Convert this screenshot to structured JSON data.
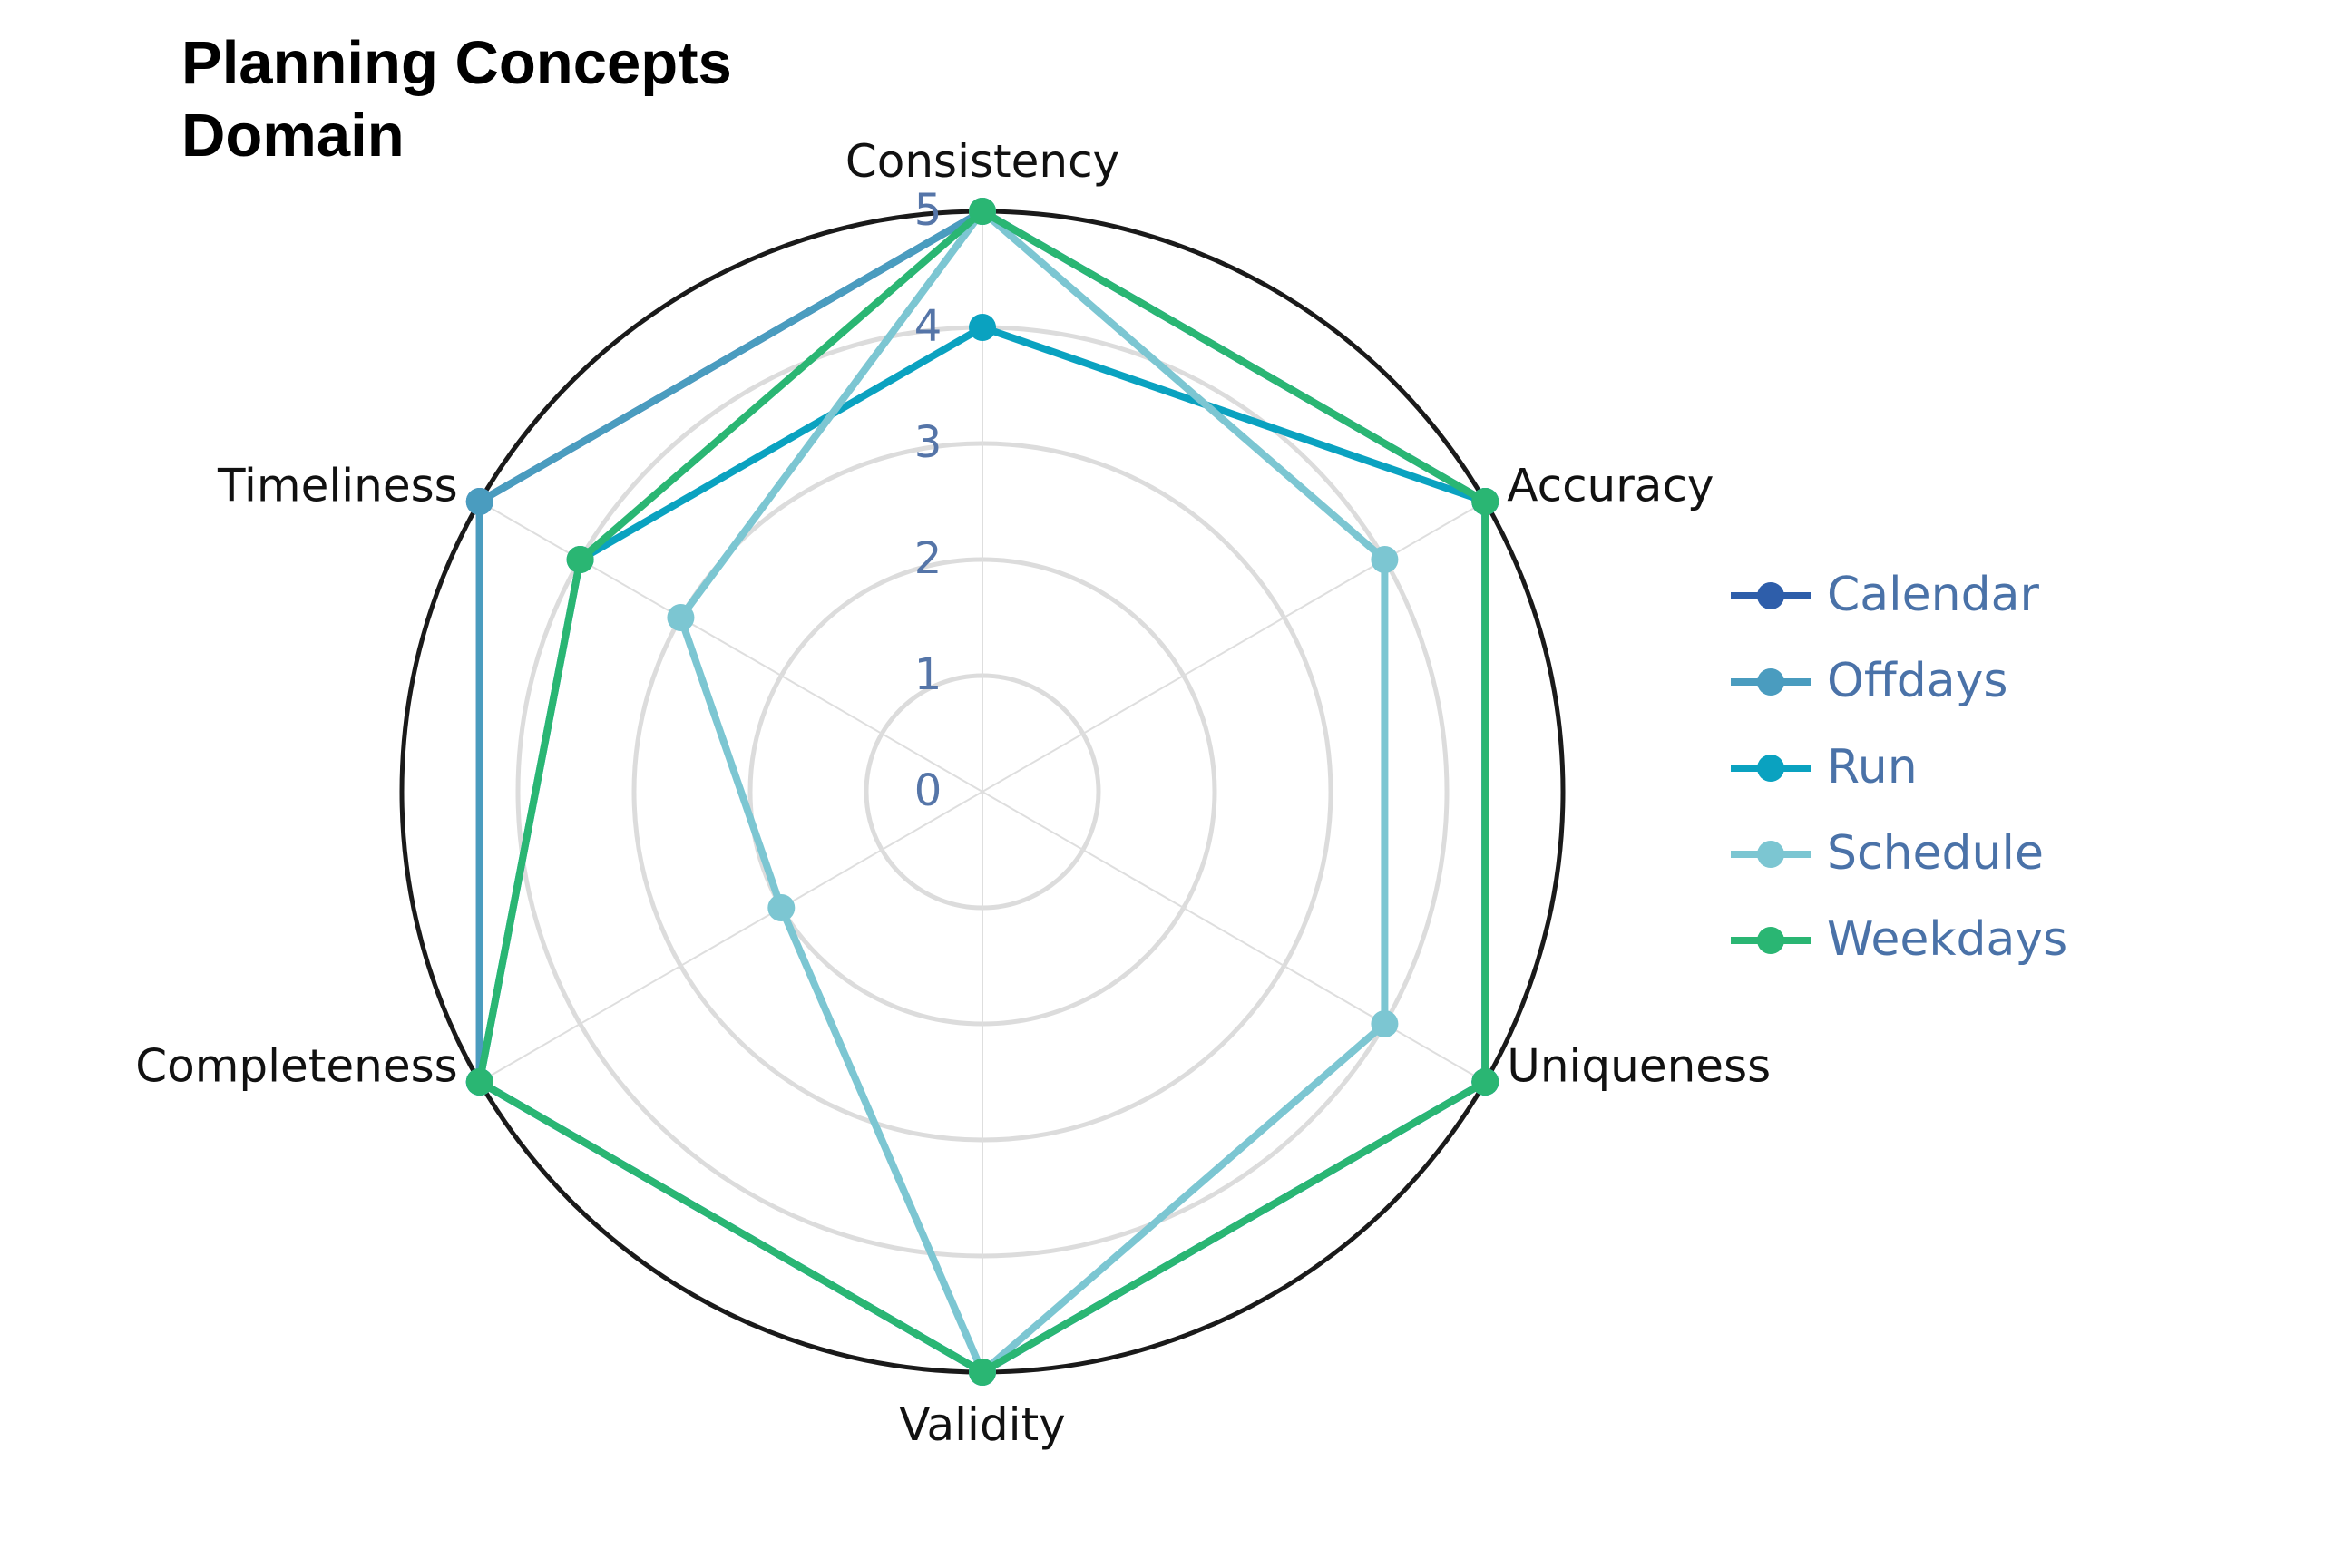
{
  "chart_data": {
    "type": "radar",
    "title": "Planning Concepts\nDomain",
    "axes": [
      "Consistency",
      "Accuracy",
      "Uniqueness",
      "Validity",
      "Completeness",
      "Timeliness"
    ],
    "rlim": [
      0,
      5
    ],
    "rticks": [
      0,
      1,
      2,
      3,
      4,
      5
    ],
    "grid": true,
    "legend_position": "right",
    "series": [
      {
        "name": "Calendar",
        "color": "#2e5eaa",
        "values": [
          5,
          5,
          5,
          5,
          5,
          5
        ]
      },
      {
        "name": "Offdays",
        "color": "#4a9cbf",
        "values": [
          5,
          5,
          5,
          5,
          5,
          5
        ]
      },
      {
        "name": "Run",
        "color": "#0aa2c0",
        "values": [
          4,
          5,
          5,
          5,
          5,
          4
        ]
      },
      {
        "name": "Schedule",
        "color": "#7cc6d2",
        "values": [
          5,
          4,
          4,
          5,
          2,
          3
        ]
      },
      {
        "name": "Weekdays",
        "color": "#2ab673",
        "values": [
          5,
          5,
          5,
          5,
          5,
          4
        ]
      }
    ]
  }
}
